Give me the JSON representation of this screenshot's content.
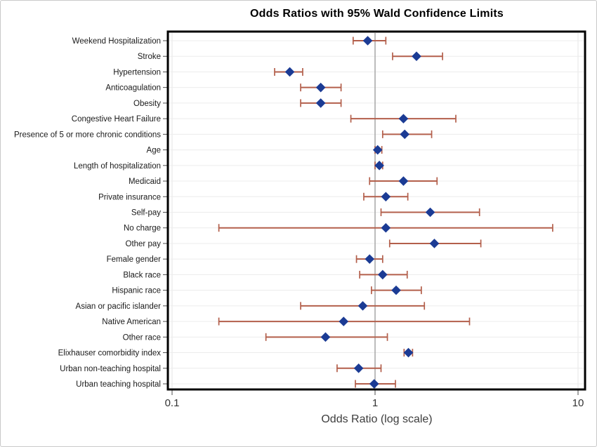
{
  "page": {
    "background_color": "#ffffff",
    "outer_border_color": "#c9c9c9"
  },
  "chart_data": {
    "type": "scatter",
    "subtype": "forest-plot",
    "title": "Odds Ratios with 95% Wald Confidence Limits",
    "xlabel": "Odds Ratio (log scale)",
    "x_scale": "log10",
    "xlim": [
      0.1,
      10
    ],
    "x_ticks": [
      {
        "value": 0.1,
        "label": "0.1"
      },
      {
        "value": 1,
        "label": "1"
      },
      {
        "value": 10,
        "label": "10"
      }
    ],
    "reference_line_x": 1,
    "grid": "horizontal gridline per category; faint vertical gridlines at 0.1 and 10",
    "legend_position": "none",
    "colors": {
      "marker": "#1b3b94",
      "ci_bar": "#b35f4b",
      "reference_line": "#a6a6a6",
      "gridline": "#ececec",
      "frame": "#000000",
      "tick": "#4d4d4d"
    },
    "rows": [
      {
        "label": "Weekend Hospitalization",
        "or": 0.92,
        "lo": 0.78,
        "hi": 1.13
      },
      {
        "label": "Stroke",
        "or": 1.6,
        "lo": 1.22,
        "hi": 2.15
      },
      {
        "label": "Hypertension",
        "or": 0.38,
        "lo": 0.32,
        "hi": 0.44
      },
      {
        "label": "Anticoagulation",
        "or": 0.54,
        "lo": 0.43,
        "hi": 0.68
      },
      {
        "label": "Obesity",
        "or": 0.54,
        "lo": 0.43,
        "hi": 0.68
      },
      {
        "label": "Congestive Heart Failure",
        "or": 1.38,
        "lo": 0.76,
        "hi": 2.5
      },
      {
        "label": "Presence of 5 or more chronic conditions",
        "or": 1.4,
        "lo": 1.09,
        "hi": 1.9
      },
      {
        "label": "Age",
        "or": 1.03,
        "lo": 1.0,
        "hi": 1.08
      },
      {
        "label": "Length of hospitalization",
        "or": 1.05,
        "lo": 1.0,
        "hi": 1.09
      },
      {
        "label": "Medicaid",
        "or": 1.38,
        "lo": 0.94,
        "hi": 2.02
      },
      {
        "label": "Private insurance",
        "or": 1.13,
        "lo": 0.88,
        "hi": 1.45
      },
      {
        "label": "Self-pay",
        "or": 1.87,
        "lo": 1.07,
        "hi": 3.27
      },
      {
        "label": "No charge",
        "or": 1.13,
        "lo": 0.17,
        "hi": 7.5
      },
      {
        "label": "Other pay",
        "or": 1.96,
        "lo": 1.18,
        "hi": 3.32
      },
      {
        "label": "Female gender",
        "or": 0.94,
        "lo": 0.81,
        "hi": 1.09
      },
      {
        "label": "Black race",
        "or": 1.09,
        "lo": 0.84,
        "hi": 1.44
      },
      {
        "label": "Hispanic race",
        "or": 1.27,
        "lo": 0.96,
        "hi": 1.69
      },
      {
        "label": "Asian or pacific islander",
        "or": 0.87,
        "lo": 0.43,
        "hi": 1.75
      },
      {
        "label": "Native American",
        "or": 0.7,
        "lo": 0.17,
        "hi": 2.92
      },
      {
        "label": "Other race",
        "or": 0.57,
        "lo": 0.29,
        "hi": 1.15
      },
      {
        "label": "Elixhauser comorbidity index",
        "or": 1.46,
        "lo": 1.39,
        "hi": 1.53
      },
      {
        "label": "Urban non-teaching hospital",
        "or": 0.83,
        "lo": 0.65,
        "hi": 1.07
      },
      {
        "label": "Urban teaching hospital",
        "or": 0.99,
        "lo": 0.8,
        "hi": 1.26
      }
    ]
  }
}
